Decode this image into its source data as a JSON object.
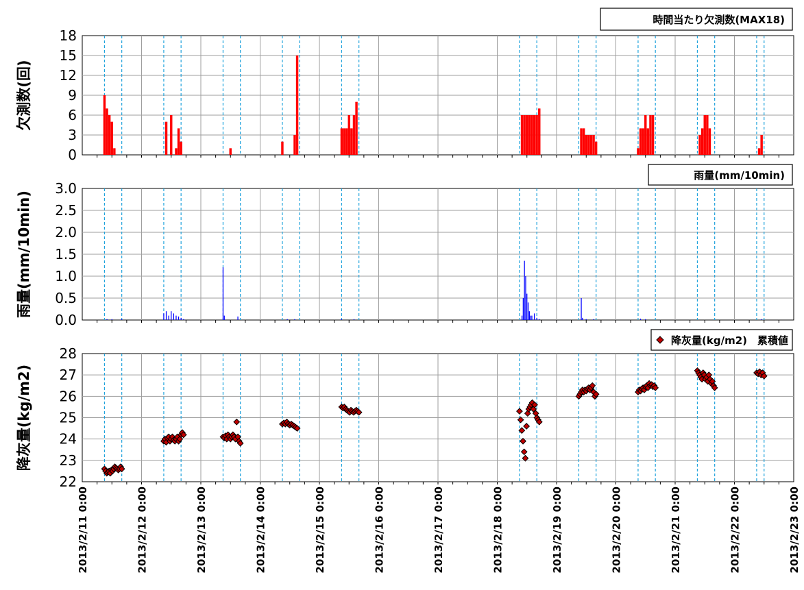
{
  "x_ticks": [
    "2013/2/11 0:00",
    "2013/2/12 0:00",
    "2013/2/13 0:00",
    "2013/2/14 0:00",
    "2013/2/15 0:00",
    "2013/2/16 0:00",
    "2013/2/17 0:00",
    "2013/2/18 0:00",
    "2013/2/19 0:00",
    "2013/2/20 0:00",
    "2013/2/21 0:00",
    "2013/2/22 0:00",
    "2013/2/23 0:00"
  ],
  "colors": {
    "missing": "#ff0000",
    "rain": "#0000ff",
    "ash_fill": "#c00000",
    "ash_edge": "#000000",
    "grid": "#9e9e9e",
    "marker_lines": "#1fa3dc"
  },
  "chart_data": [
    {
      "type": "bar",
      "legend": "時間当たり欠測数(MAX18)",
      "ylabel": "欠測数(回)",
      "ylim": [
        0,
        18
      ],
      "yticks": [
        "0",
        "3",
        "6",
        "9",
        "12",
        "15",
        "18"
      ],
      "xlim": [
        "2013/2/11 0:00",
        "2013/2/23 0:00"
      ],
      "grid": true,
      "legend_position": "top-right",
      "color": "#ff0000",
      "points": [
        {
          "x": "2013/2/11 9:00",
          "y": 9
        },
        {
          "x": "2013/2/11 10:00",
          "y": 7
        },
        {
          "x": "2013/2/11 11:00",
          "y": 6
        },
        {
          "x": "2013/2/11 12:00",
          "y": 5
        },
        {
          "x": "2013/2/11 13:00",
          "y": 1
        },
        {
          "x": "2013/2/12 10:00",
          "y": 5
        },
        {
          "x": "2013/2/12 12:00",
          "y": 6
        },
        {
          "x": "2013/2/12 14:00",
          "y": 1
        },
        {
          "x": "2013/2/12 15:00",
          "y": 4
        },
        {
          "x": "2013/2/12 16:00",
          "y": 2
        },
        {
          "x": "2013/2/13 12:00",
          "y": 1
        },
        {
          "x": "2013/2/14 9:00",
          "y": 2
        },
        {
          "x": "2013/2/14 14:00",
          "y": 3
        },
        {
          "x": "2013/2/14 15:00",
          "y": 15
        },
        {
          "x": "2013/2/15 9:00",
          "y": 4
        },
        {
          "x": "2013/2/15 10:00",
          "y": 4
        },
        {
          "x": "2013/2/15 11:00",
          "y": 4
        },
        {
          "x": "2013/2/15 12:00",
          "y": 6
        },
        {
          "x": "2013/2/15 13:00",
          "y": 4
        },
        {
          "x": "2013/2/15 14:00",
          "y": 6
        },
        {
          "x": "2013/2/15 15:00",
          "y": 8
        },
        {
          "x": "2013/2/18 10:00",
          "y": 6
        },
        {
          "x": "2013/2/18 11:00",
          "y": 6
        },
        {
          "x": "2013/2/18 12:00",
          "y": 6
        },
        {
          "x": "2013/2/18 13:00",
          "y": 6
        },
        {
          "x": "2013/2/18 14:00",
          "y": 6
        },
        {
          "x": "2013/2/18 15:00",
          "y": 6
        },
        {
          "x": "2013/2/18 16:00",
          "y": 6
        },
        {
          "x": "2013/2/18 17:00",
          "y": 7
        },
        {
          "x": "2013/2/19 10:00",
          "y": 4
        },
        {
          "x": "2013/2/19 11:00",
          "y": 4
        },
        {
          "x": "2013/2/19 12:00",
          "y": 3
        },
        {
          "x": "2013/2/19 13:00",
          "y": 3
        },
        {
          "x": "2013/2/19 14:00",
          "y": 3
        },
        {
          "x": "2013/2/19 15:00",
          "y": 3
        },
        {
          "x": "2013/2/19 16:00",
          "y": 2
        },
        {
          "x": "2013/2/20 9:00",
          "y": 1
        },
        {
          "x": "2013/2/20 10:00",
          "y": 4
        },
        {
          "x": "2013/2/20 11:00",
          "y": 4
        },
        {
          "x": "2013/2/20 12:00",
          "y": 6
        },
        {
          "x": "2013/2/20 13:00",
          "y": 4
        },
        {
          "x": "2013/2/20 14:00",
          "y": 6
        },
        {
          "x": "2013/2/20 15:00",
          "y": 6
        },
        {
          "x": "2013/2/21 10:00",
          "y": 3
        },
        {
          "x": "2013/2/21 11:00",
          "y": 4
        },
        {
          "x": "2013/2/21 12:00",
          "y": 6
        },
        {
          "x": "2013/2/21 13:00",
          "y": 6
        },
        {
          "x": "2013/2/21 14:00",
          "y": 4
        },
        {
          "x": "2013/2/22 10:00",
          "y": 1
        },
        {
          "x": "2013/2/22 11:00",
          "y": 3
        }
      ]
    },
    {
      "type": "bar",
      "legend": "雨量(mm/10min)",
      "ylabel": "雨量(mm/10min)",
      "ylim": [
        0,
        3
      ],
      "yticks": [
        "0.0",
        "0.5",
        "1.0",
        "1.5",
        "2.0",
        "2.5",
        "3.0"
      ],
      "xlim": [
        "2013/2/11 0:00",
        "2013/2/23 0:00"
      ],
      "grid": true,
      "legend_position": "top-right",
      "color": "#0000ff",
      "points": [
        {
          "x": "2013/2/11 10:00",
          "y": 0.02
        },
        {
          "x": "2013/2/11 12:00",
          "y": 0.02
        },
        {
          "x": "2013/2/11 16:00",
          "y": 0.02
        },
        {
          "x": "2013/2/12 9:00",
          "y": 0.15
        },
        {
          "x": "2013/2/12 10:00",
          "y": 0.2
        },
        {
          "x": "2013/2/12 11:00",
          "y": 0.1
        },
        {
          "x": "2013/2/12 12:00",
          "y": 0.2
        },
        {
          "x": "2013/2/12 13:00",
          "y": 0.15
        },
        {
          "x": "2013/2/12 14:00",
          "y": 0.1
        },
        {
          "x": "2013/2/12 15:00",
          "y": 0.08
        },
        {
          "x": "2013/2/12 16:00",
          "y": 0.05
        },
        {
          "x": "2013/2/12 17:00",
          "y": 0.02
        },
        {
          "x": "2013/2/13 9:00",
          "y": 1.2
        },
        {
          "x": "2013/2/13 9:30",
          "y": 0.1
        },
        {
          "x": "2013/2/13 15:00",
          "y": 0.08
        },
        {
          "x": "2013/2/14 11:00",
          "y": 0.02
        },
        {
          "x": "2013/2/14 14:00",
          "y": 0.02
        },
        {
          "x": "2013/2/15 9:00",
          "y": 0.02
        },
        {
          "x": "2013/2/15 14:00",
          "y": 0.02
        },
        {
          "x": "2013/2/18 10:00",
          "y": 0.1
        },
        {
          "x": "2013/2/18 10:30",
          "y": 0.5
        },
        {
          "x": "2013/2/18 11:00",
          "y": 1.35
        },
        {
          "x": "2013/2/18 11:30",
          "y": 1.0
        },
        {
          "x": "2013/2/18 12:00",
          "y": 0.6
        },
        {
          "x": "2013/2/18 12:30",
          "y": 0.4
        },
        {
          "x": "2013/2/18 13:00",
          "y": 0.2
        },
        {
          "x": "2013/2/18 13:30",
          "y": 0.1
        },
        {
          "x": "2013/2/18 14:00",
          "y": 0.1
        },
        {
          "x": "2013/2/18 15:00",
          "y": 0.15
        },
        {
          "x": "2013/2/18 16:00",
          "y": 0.05
        },
        {
          "x": "2013/2/18 17:00",
          "y": 0.02
        },
        {
          "x": "2013/2/19 10:00",
          "y": 0.5
        },
        {
          "x": "2013/2/19 10:30",
          "y": 0.05
        },
        {
          "x": "2013/2/19 12:00",
          "y": 0.02
        },
        {
          "x": "2013/2/19 15:00",
          "y": 0.02
        },
        {
          "x": "2013/2/20 10:00",
          "y": 0.03
        },
        {
          "x": "2013/2/20 12:00",
          "y": 0.02
        },
        {
          "x": "2013/2/22 11:00",
          "y": 0.02
        }
      ]
    },
    {
      "type": "scatter",
      "legend": "降灰量(kg/m2)　累積値",
      "ylabel": "降灰量(kg/m2)",
      "ylim": [
        22,
        28
      ],
      "yticks": [
        "22",
        "23",
        "24",
        "25",
        "26",
        "27",
        "28"
      ],
      "xlim": [
        "2013/2/11 0:00",
        "2013/2/23 0:00"
      ],
      "grid": true,
      "legend_position": "top-right",
      "marker": "diamond",
      "color": "#c00000",
      "clusters": [
        {
          "start": "2013/2/11 9:00",
          "end": "2013/2/11 16:00",
          "y_values": [
            22.6,
            22.5,
            22.4,
            22.45,
            22.5,
            22.4,
            22.55,
            22.5,
            22.6,
            22.7,
            22.65,
            22.6,
            22.55,
            22.6,
            22.7,
            22.6
          ]
        },
        {
          "start": "2013/2/12 9:00",
          "end": "2013/2/12 17:00",
          "y_values": [
            23.9,
            24.0,
            23.85,
            24.05,
            24.1,
            23.9,
            24.0,
            24.1,
            23.95,
            23.9,
            24.0,
            24.1,
            23.9,
            24.0,
            24.2,
            24.3,
            24.2
          ]
        },
        {
          "start": "2013/2/13 9:00",
          "end": "2013/2/13 16:00",
          "y_values": [
            24.1,
            24.05,
            24.15,
            24.0,
            24.2,
            24.1,
            24.0,
            24.1,
            24.2,
            24.1,
            24.0,
            24.8,
            24.1,
            23.9,
            23.8
          ]
        },
        {
          "start": "2013/2/14 9:00",
          "end": "2013/2/14 15:00",
          "y_values": [
            24.7,
            24.75,
            24.7,
            24.8,
            24.7,
            24.65,
            24.7,
            24.65,
            24.6,
            24.55,
            24.5
          ]
        },
        {
          "start": "2013/2/15 9:00",
          "end": "2013/2/15 16:00",
          "y_values": [
            25.5,
            25.45,
            25.5,
            25.4,
            25.35,
            25.3,
            25.25,
            25.35,
            25.3,
            25.25,
            25.3,
            25.35,
            25.3,
            25.25
          ]
        },
        {
          "start": "2013/2/18 9:00",
          "end": "2013/2/18 17:00",
          "y_values": [
            25.3,
            24.9,
            24.4,
            23.9,
            23.4,
            23.1,
            24.6,
            25.2,
            25.4,
            25.5,
            25.6,
            25.7,
            25.4,
            25.6,
            25.2,
            25.0,
            24.9,
            24.8
          ]
        },
        {
          "start": "2013/2/19 9:00",
          "end": "2013/2/19 16:00",
          "y_values": [
            26.0,
            26.1,
            26.2,
            26.3,
            26.2,
            26.3,
            26.25,
            26.35,
            26.4,
            26.3,
            26.4,
            26.5,
            26.2,
            26.0,
            26.1
          ]
        },
        {
          "start": "2013/2/20 9:00",
          "end": "2013/2/20 16:00",
          "y_values": [
            26.2,
            26.3,
            26.25,
            26.35,
            26.4,
            26.3,
            26.45,
            26.5,
            26.4,
            26.6,
            26.5,
            26.55,
            26.45,
            26.5,
            26.4
          ]
        },
        {
          "start": "2013/2/21 9:00",
          "end": "2013/2/21 16:00",
          "y_values": [
            27.2,
            27.1,
            27.0,
            26.9,
            26.8,
            27.1,
            27.0,
            26.8,
            26.9,
            26.7,
            27.0,
            26.8,
            26.6,
            26.7,
            26.5,
            26.4
          ]
        },
        {
          "start": "2013/2/22 9:00",
          "end": "2013/2/22 12:00",
          "y_values": [
            27.1,
            27.05,
            27.15,
            27.0,
            27.1,
            26.95
          ]
        }
      ]
    }
  ],
  "event_lines": [
    "2013/2/11 9:00",
    "2013/2/11 16:00",
    "2013/2/12 9:00",
    "2013/2/12 16:00",
    "2013/2/13 9:00",
    "2013/2/13 16:00",
    "2013/2/14 9:00",
    "2013/2/14 16:00",
    "2013/2/15 9:00",
    "2013/2/15 16:00",
    "2013/2/18 9:00",
    "2013/2/18 16:00",
    "2013/2/19 9:00",
    "2013/2/19 16:00",
    "2013/2/20 9:00",
    "2013/2/20 16:00",
    "2013/2/21 9:00",
    "2013/2/21 16:00",
    "2013/2/22 9:00",
    "2013/2/22 12:00"
  ]
}
